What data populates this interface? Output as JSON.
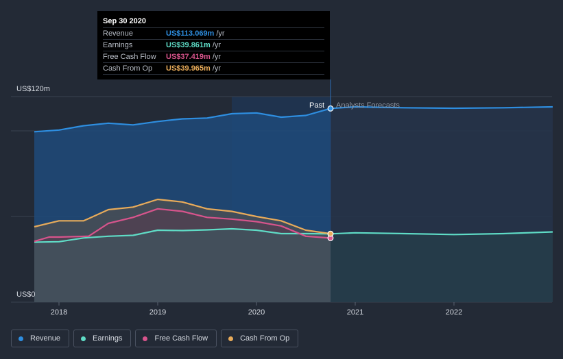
{
  "tooltip": {
    "date": "Sep 30 2020",
    "rows": [
      {
        "label": "Revenue",
        "value": "US$113.069m",
        "unit": "/yr",
        "color": "#2e8ee0"
      },
      {
        "label": "Earnings",
        "value": "US$39.861m",
        "unit": "/yr",
        "color": "#5fdcc6"
      },
      {
        "label": "Free Cash Flow",
        "value": "US$37.419m",
        "unit": "/yr",
        "color": "#d8548c"
      },
      {
        "label": "Cash From Op",
        "value": "US$39.965m",
        "unit": "/yr",
        "color": "#e8ab5a"
      }
    ]
  },
  "chart_data": {
    "type": "area",
    "y_top_label": "US$120m",
    "y_bottom_label": "US$0",
    "ylim": [
      0,
      120
    ],
    "xlim": [
      2017.75,
      2023.0
    ],
    "x_ticks": [
      {
        "x": 2018,
        "label": "2018"
      },
      {
        "x": 2019,
        "label": "2019"
      },
      {
        "x": 2020,
        "label": "2020"
      },
      {
        "x": 2021,
        "label": "2021"
      },
      {
        "x": 2022,
        "label": "2022"
      }
    ],
    "past_label": "Past",
    "forecast_label": "Analysts Forecasts",
    "divider_x": 2020.75,
    "highlight_band": [
      2019.75,
      2020.75
    ],
    "grid": true,
    "legend_placement": "bottom-left",
    "series": [
      {
        "name": "Revenue",
        "color": "#2e8ee0",
        "past": [
          [
            2017.75,
            99.5
          ],
          [
            2018.0,
            100.5
          ],
          [
            2018.25,
            103.0
          ],
          [
            2018.5,
            104.5
          ],
          [
            2018.75,
            103.5
          ],
          [
            2019.0,
            105.5
          ],
          [
            2019.25,
            107.0
          ],
          [
            2019.5,
            107.5
          ],
          [
            2019.75,
            110.0
          ],
          [
            2020.0,
            110.5
          ],
          [
            2020.25,
            108.0
          ],
          [
            2020.5,
            109.0
          ],
          [
            2020.75,
            113.069
          ]
        ],
        "forecast": [
          [
            2020.75,
            113.069
          ],
          [
            2021.0,
            114.0
          ],
          [
            2021.5,
            113.5
          ],
          [
            2022.0,
            113.2
          ],
          [
            2022.5,
            113.5
          ],
          [
            2023.0,
            114.0
          ]
        ]
      },
      {
        "name": "Earnings",
        "color": "#5fdcc6",
        "past": [
          [
            2017.75,
            35.0
          ],
          [
            2018.0,
            35.3
          ],
          [
            2018.25,
            37.5
          ],
          [
            2018.5,
            38.5
          ],
          [
            2018.75,
            39.0
          ],
          [
            2019.0,
            42.0
          ],
          [
            2019.25,
            41.8
          ],
          [
            2019.5,
            42.2
          ],
          [
            2019.75,
            42.8
          ],
          [
            2020.0,
            42.0
          ],
          [
            2020.25,
            40.0
          ],
          [
            2020.5,
            40.0
          ],
          [
            2020.75,
            39.861
          ]
        ],
        "forecast": [
          [
            2020.75,
            39.861
          ],
          [
            2021.0,
            40.5
          ],
          [
            2021.5,
            40.0
          ],
          [
            2022.0,
            39.5
          ],
          [
            2022.5,
            40.0
          ],
          [
            2023.0,
            41.0
          ]
        ]
      },
      {
        "name": "Free Cash Flow",
        "color": "#d8548c",
        "past": [
          [
            2017.75,
            35.5
          ],
          [
            2017.9,
            38.0
          ],
          [
            2018.0,
            38.0
          ],
          [
            2018.3,
            38.5
          ],
          [
            2018.5,
            46.0
          ],
          [
            2018.75,
            49.5
          ],
          [
            2019.0,
            54.5
          ],
          [
            2019.25,
            53.0
          ],
          [
            2019.5,
            49.5
          ],
          [
            2019.75,
            48.5
          ],
          [
            2020.0,
            47.0
          ],
          [
            2020.25,
            44.5
          ],
          [
            2020.5,
            38.5
          ],
          [
            2020.75,
            37.419
          ]
        ],
        "forecast": []
      },
      {
        "name": "Cash From Op",
        "color": "#e8ab5a",
        "past": [
          [
            2017.75,
            44.0
          ],
          [
            2018.0,
            47.5
          ],
          [
            2018.25,
            47.5
          ],
          [
            2018.5,
            54.0
          ],
          [
            2018.75,
            55.5
          ],
          [
            2019.0,
            60.0
          ],
          [
            2019.25,
            58.5
          ],
          [
            2019.5,
            54.5
          ],
          [
            2019.75,
            53.0
          ],
          [
            2020.0,
            50.0
          ],
          [
            2020.25,
            47.5
          ],
          [
            2020.5,
            42.0
          ],
          [
            2020.75,
            39.965
          ]
        ],
        "forecast": []
      }
    ]
  },
  "legend": [
    {
      "label": "Revenue",
      "color": "#2e8ee0"
    },
    {
      "label": "Earnings",
      "color": "#5fdcc6"
    },
    {
      "label": "Free Cash Flow",
      "color": "#d8548c"
    },
    {
      "label": "Cash From Op",
      "color": "#e8ab5a"
    }
  ]
}
